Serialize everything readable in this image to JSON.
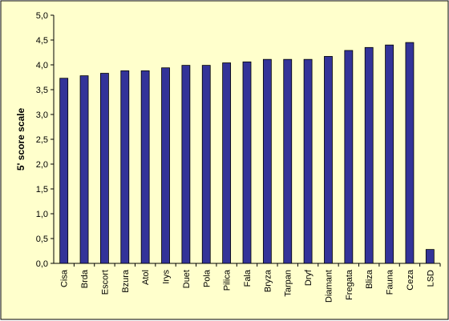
{
  "chart_data": {
    "type": "bar",
    "title": "",
    "xlabel": "",
    "ylabel": "5' score scale",
    "ylim": [
      0,
      5
    ],
    "y_ticks": [
      "0,0",
      "0,5",
      "1,0",
      "1,5",
      "2,0",
      "2,5",
      "3,0",
      "3,5",
      "4,0",
      "4,5",
      "5,0"
    ],
    "grid": false,
    "legend": "none",
    "categories": [
      "Cisa",
      "Brda",
      "Escort",
      "Bzura",
      "Atol",
      "Irys",
      "Duet",
      "Pola",
      "Pilica",
      "Fala",
      "Bryza",
      "Tarpan",
      "Dryf",
      "Diamant",
      "Fregata",
      "Bliza",
      "Fauna",
      "Ceza",
      "LSD"
    ],
    "values": [
      3.73,
      3.78,
      3.83,
      3.88,
      3.88,
      3.94,
      3.99,
      3.99,
      4.04,
      4.06,
      4.11,
      4.11,
      4.11,
      4.17,
      4.29,
      4.35,
      4.4,
      4.45,
      0.28
    ],
    "colors": {
      "bar": "#333399",
      "plot_background": "#FFFFCC",
      "frame": "#000000"
    }
  }
}
